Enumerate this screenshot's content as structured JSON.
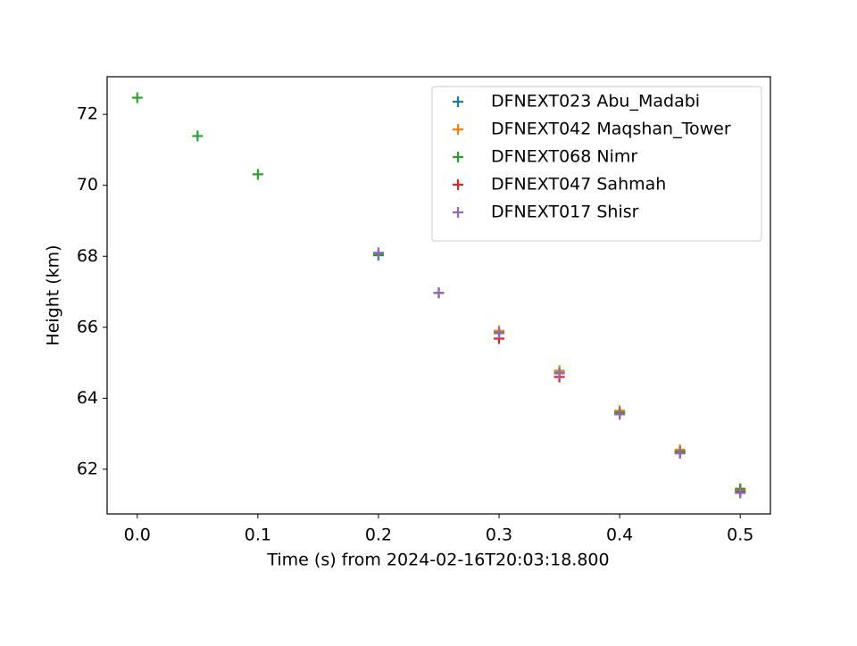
{
  "chart_data": {
    "type": "scatter",
    "marker": "+",
    "xlabel": "Time (s) from 2024-02-16T20:03:18.800",
    "ylabel": "Height (km)",
    "xlim": [
      -0.025,
      0.525
    ],
    "ylim": [
      60.74,
      73.06
    ],
    "xticks": [
      {
        "value": 0,
        "label": "0.0"
      },
      0.1,
      0.2,
      0.3,
      0.4,
      0.5
    ],
    "yticks": [
      62,
      64,
      66,
      68,
      70,
      72
    ],
    "legend": "upper right",
    "grid": false,
    "series": [
      {
        "name": "DFNEXT023 Abu_Madabi",
        "color": "#1f77b4",
        "x": [
          0.2,
          0.25,
          0.3,
          0.35,
          0.4,
          0.45,
          0.5
        ],
        "values": [
          68.03,
          66.97,
          65.85,
          64.72,
          63.6,
          62.5,
          61.4
        ]
      },
      {
        "name": "DFNEXT042 Maqshan_Tower",
        "color": "#ff7f0e",
        "x": [
          0.3,
          0.35,
          0.4,
          0.45,
          0.5
        ],
        "values": [
          65.9,
          64.78,
          63.65,
          62.55,
          61.43
        ]
      },
      {
        "name": "DFNEXT068 Nimr",
        "color": "#2ca02c",
        "x": [
          0,
          0.05,
          0.1,
          0.2,
          0.25,
          0.3,
          0.35,
          0.4,
          0.45,
          0.5
        ],
        "values": [
          72.47,
          71.39,
          70.31,
          68.05,
          66.97,
          65.85,
          64.72,
          63.6,
          62.5,
          61.45
        ]
      },
      {
        "name": "DFNEXT047 Sahmah",
        "color": "#d62728",
        "x": [
          0.3,
          0.35,
          0.4,
          0.45,
          0.5
        ],
        "values": [
          65.68,
          64.6,
          63.55,
          62.45,
          61.35
        ]
      },
      {
        "name": "DFNEXT017 Shisr",
        "color": "#9467bd",
        "x": [
          0.2,
          0.25,
          0.3,
          0.35,
          0.4,
          0.45,
          0.5
        ],
        "values": [
          68.1,
          66.97,
          65.83,
          64.7,
          63.55,
          62.45,
          61.33
        ]
      }
    ]
  }
}
